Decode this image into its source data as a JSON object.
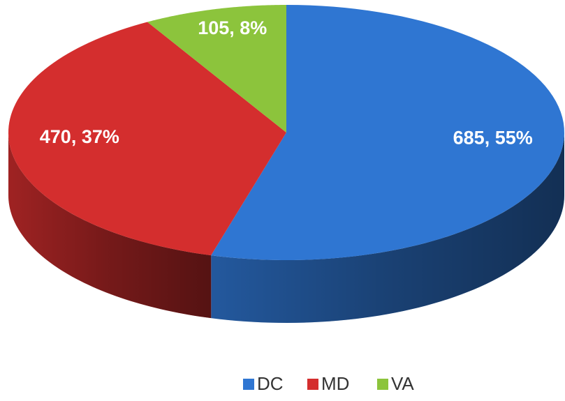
{
  "chart_data": {
    "type": "pie3d",
    "categories": [
      "DC",
      "MD",
      "VA"
    ],
    "values": [
      685,
      470,
      105
    ],
    "value_labels": [
      "685, 55%",
      "470, 37%",
      "105, 8%"
    ],
    "colors": [
      "#2f76d2",
      "#d42e2e",
      "#8cc43c"
    ],
    "legend": "bottom"
  }
}
